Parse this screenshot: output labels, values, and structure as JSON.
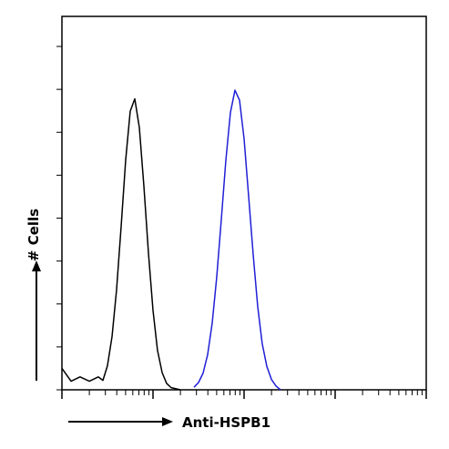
{
  "chart_data": {
    "type": "histogram-overlay",
    "xlabel": "Anti-HSPB1",
    "ylabel": "# Cells",
    "xscale": "log",
    "xlim": [
      1,
      10000
    ],
    "xticks": [
      1,
      2,
      3,
      4,
      5,
      6,
      7,
      8,
      9,
      10,
      20,
      30,
      40,
      50,
      60,
      70,
      80,
      90,
      100,
      200,
      300,
      400,
      500,
      600,
      700,
      800,
      900,
      1000,
      2000,
      3000,
      4000,
      5000,
      6000,
      7000,
      8000,
      9000,
      10000
    ],
    "ylim": [
      0,
      8.7
    ],
    "yticks": [
      0,
      1,
      2,
      3,
      4,
      5,
      6,
      7,
      8
    ],
    "series": [
      {
        "color": "#000000",
        "x": [
          1,
          1.26,
          1.58,
          2,
          2.51,
          2.82,
          3.16,
          3.55,
          3.98,
          4.47,
          5.01,
          5.62,
          6.31,
          7.08,
          7.94,
          8.91,
          10,
          11.2,
          12.6,
          14.1,
          15.8,
          20
        ],
        "values": [
          0.5,
          0.2,
          0.3,
          0.2,
          0.3,
          0.22,
          0.56,
          1.24,
          2.33,
          3.81,
          5.35,
          6.49,
          6.78,
          6.11,
          4.75,
          3.19,
          1.85,
          0.92,
          0.4,
          0.15,
          0.05,
          0
        ]
      },
      {
        "color": "#1f1fd6",
        "x": [
          28.2,
          31.6,
          35.5,
          39.8,
          44.7,
          50.1,
          56.2,
          63.1,
          70.8,
          79.4,
          89.1,
          100,
          112,
          126,
          141,
          158,
          178,
          200,
          224,
          251
        ],
        "values": [
          0.06,
          0.17,
          0.39,
          0.82,
          1.56,
          2.63,
          3.96,
          5.35,
          6.46,
          6.98,
          6.75,
          5.85,
          4.53,
          3.14,
          1.95,
          1.08,
          0.54,
          0.24,
          0.09,
          0
        ]
      }
    ]
  }
}
